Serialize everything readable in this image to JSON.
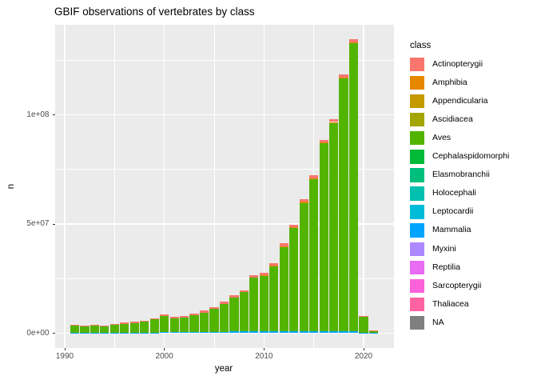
{
  "title": "GBIF observations of vertebrates by class",
  "x_axis": {
    "label": "year",
    "major_ticks": [
      1990,
      2000,
      2010,
      2020
    ],
    "minor_ticks": [
      1995,
      2005,
      2015
    ]
  },
  "y_axis": {
    "label": "n",
    "ticks": [
      {
        "value": 0,
        "label": "0e+00"
      },
      {
        "value": 50000000,
        "label": "5e+07"
      },
      {
        "value": 100000000,
        "label": "1e+08"
      }
    ],
    "minor_ticks": [
      25000000,
      75000000,
      125000000
    ]
  },
  "legend": {
    "title": "class",
    "items": [
      {
        "label": "Actinopterygii",
        "color": "#F8766D"
      },
      {
        "label": "Amphibia",
        "color": "#E58700"
      },
      {
        "label": "Appendicularia",
        "color": "#C49A00"
      },
      {
        "label": "Ascidiacea",
        "color": "#A3A500"
      },
      {
        "label": "Aves",
        "color": "#53B400"
      },
      {
        "label": "Cephalaspidomorphi",
        "color": "#00BA38"
      },
      {
        "label": "Elasmobranchii",
        "color": "#00BF7D"
      },
      {
        "label": "Holocephali",
        "color": "#00C0AF"
      },
      {
        "label": "Leptocardii",
        "color": "#00BCD8"
      },
      {
        "label": "Mammalia",
        "color": "#00A5FF"
      },
      {
        "label": "Myxini",
        "color": "#AC88FF"
      },
      {
        "label": "Reptilia",
        "color": "#E76BF3"
      },
      {
        "label": "Sarcopterygii",
        "color": "#FB62D9"
      },
      {
        "label": "Thaliacea",
        "color": "#FF63A2"
      },
      {
        "label": "NA",
        "color": "#7F7F7F"
      }
    ]
  },
  "chart_data": {
    "type": "bar",
    "stacked": true,
    "title": "GBIF observations of vertebrates by class",
    "xlabel": "year",
    "ylabel": "n",
    "xlim": [
      1989,
      2022.5
    ],
    "ylim": [
      0,
      141000000
    ],
    "grid": true,
    "legend_position": "right",
    "x": [
      1991,
      1992,
      1993,
      1994,
      1995,
      1996,
      1997,
      1998,
      1999,
      2000,
      2001,
      2002,
      2003,
      2004,
      2005,
      2006,
      2007,
      2008,
      2009,
      2010,
      2011,
      2012,
      2013,
      2014,
      2015,
      2016,
      2017,
      2018,
      2019,
      2020,
      2021
    ],
    "stack_order_top_to_bottom": [
      "Actinopterygii",
      "Amphibia",
      "Aves",
      "Mammalia"
    ],
    "series": [
      {
        "name": "Actinopterygii",
        "color": "#F8766D",
        "values": [
          400000,
          350000,
          400000,
          350000,
          450000,
          500000,
          500000,
          550000,
          600000,
          700000,
          600000,
          650000,
          700000,
          800000,
          900000,
          1000000,
          1100000,
          900000,
          1300000,
          1100000,
          1200000,
          1300000,
          1200000,
          1200000,
          1200000,
          1200000,
          1200000,
          1300000,
          1300000,
          200000,
          50000
        ]
      },
      {
        "name": "Amphibia",
        "color": "#E58700",
        "values": [
          0,
          0,
          0,
          0,
          0,
          0,
          0,
          0,
          0,
          0,
          0,
          0,
          0,
          0,
          0,
          0,
          0,
          0,
          0,
          300000,
          300000,
          300000,
          400000,
          400000,
          500000,
          500000,
          500000,
          500000,
          500000,
          50000,
          0
        ]
      },
      {
        "name": "Aves",
        "color": "#53B400",
        "values": [
          3450000,
          3100000,
          3250000,
          3100000,
          3600000,
          4150000,
          4550000,
          5000000,
          6150000,
          7300000,
          6300000,
          6750000,
          7800000,
          8800000,
          10300000,
          12700000,
          15400000,
          18000000,
          24500000,
          25500000,
          29900000,
          38600000,
          47200000,
          58800000,
          69600000,
          86000000,
          95300000,
          115600000,
          131700000,
          7450000,
          1300000
        ]
      },
      {
        "name": "Mammalia",
        "color": "#00A5FF",
        "values": [
          150000,
          150000,
          150000,
          150000,
          150000,
          150000,
          150000,
          150000,
          150000,
          500000,
          500000,
          500000,
          600000,
          700000,
          700000,
          700000,
          800000,
          800000,
          800000,
          800000,
          800000,
          1000000,
          900000,
          900000,
          900000,
          900000,
          900000,
          1000000,
          1000000,
          200000,
          50000
        ]
      }
    ],
    "totals_approx": [
      4000000,
      3600000,
      3800000,
      3600000,
      4200000,
      4800000,
      5200000,
      5700000,
      6900000,
      8500000,
      7400000,
      7900000,
      9100000,
      10300000,
      11900000,
      14400000,
      17300000,
      19700000,
      26600000,
      27700000,
      32200000,
      41200000,
      49700000,
      61300000,
      72200000,
      88600000,
      97900000,
      118400000,
      134500000,
      7900000,
      1400000
    ]
  }
}
